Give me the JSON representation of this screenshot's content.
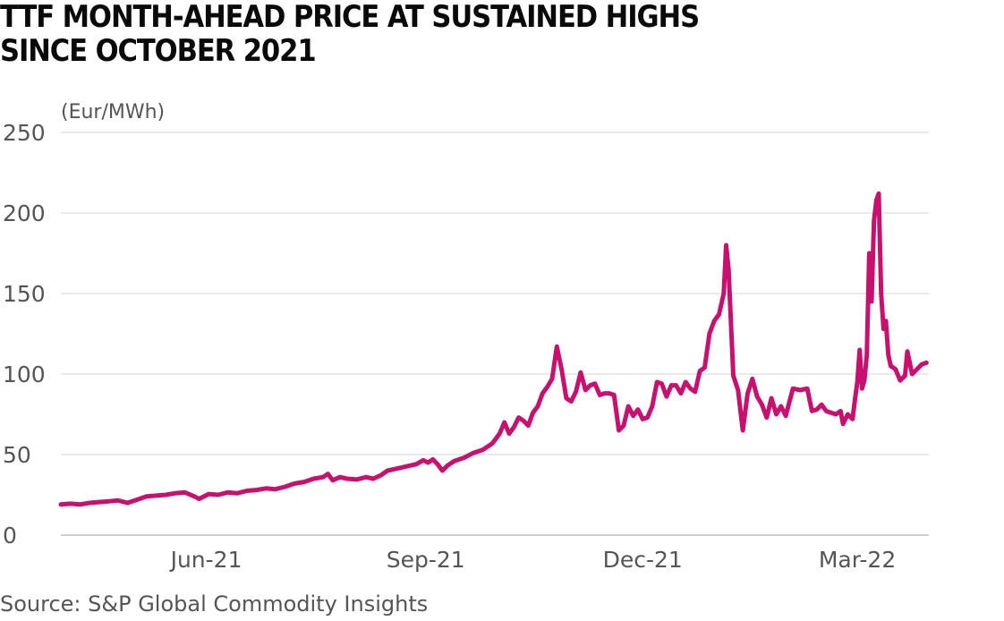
{
  "chart_data": {
    "type": "line",
    "title_lines": [
      "TTF MONTH-AHEAD PRICE AT SUSTAINED HIGHS",
      "SINCE OCTOBER 2021"
    ],
    "unit_label": "(Eur/MWh)",
    "xlabel": "",
    "ylabel": "",
    "ylim": [
      0,
      250
    ],
    "yticks": [
      0,
      50,
      100,
      150,
      200,
      250
    ],
    "xlim": [
      "2021-04-01",
      "2022-03-31"
    ],
    "xticks": [
      {
        "date": "2021-06-01",
        "label": "Jun-21"
      },
      {
        "date": "2021-09-01",
        "label": "Sep-21"
      },
      {
        "date": "2021-12-01",
        "label": "Dec-21"
      },
      {
        "date": "2022-03-01",
        "label": "Mar-22"
      }
    ],
    "grid": true,
    "line_color": "#c8106e",
    "series": [
      {
        "points": [
          [
            "2021-04-01",
            19
          ],
          [
            "2021-04-05",
            19.5
          ],
          [
            "2021-04-09",
            19
          ],
          [
            "2021-04-13",
            20
          ],
          [
            "2021-04-17",
            20.5
          ],
          [
            "2021-04-21",
            21
          ],
          [
            "2021-04-25",
            21.5
          ],
          [
            "2021-04-29",
            20
          ],
          [
            "2021-05-03",
            22
          ],
          [
            "2021-05-07",
            24
          ],
          [
            "2021-05-11",
            24.5
          ],
          [
            "2021-05-15",
            25
          ],
          [
            "2021-05-19",
            26
          ],
          [
            "2021-05-23",
            26.5
          ],
          [
            "2021-05-27",
            24
          ],
          [
            "2021-05-29",
            22.5
          ],
          [
            "2021-06-02",
            25.5
          ],
          [
            "2021-06-06",
            25
          ],
          [
            "2021-06-10",
            26.5
          ],
          [
            "2021-06-14",
            26
          ],
          [
            "2021-06-18",
            27.5
          ],
          [
            "2021-06-22",
            28
          ],
          [
            "2021-06-26",
            29
          ],
          [
            "2021-06-30",
            28.5
          ],
          [
            "2021-07-04",
            30
          ],
          [
            "2021-07-08",
            32
          ],
          [
            "2021-07-12",
            33
          ],
          [
            "2021-07-16",
            35
          ],
          [
            "2021-07-20",
            36
          ],
          [
            "2021-07-22",
            38
          ],
          [
            "2021-07-24",
            34
          ],
          [
            "2021-07-27",
            36
          ],
          [
            "2021-07-30",
            35
          ],
          [
            "2021-08-03",
            34.5
          ],
          [
            "2021-08-07",
            36
          ],
          [
            "2021-08-10",
            35
          ],
          [
            "2021-08-13",
            37
          ],
          [
            "2021-08-16",
            40
          ],
          [
            "2021-08-19",
            41
          ],
          [
            "2021-08-22",
            42
          ],
          [
            "2021-08-25",
            43
          ],
          [
            "2021-08-28",
            44
          ],
          [
            "2021-08-31",
            46.5
          ],
          [
            "2021-09-02",
            45
          ],
          [
            "2021-09-04",
            47
          ],
          [
            "2021-09-06",
            44
          ],
          [
            "2021-09-08",
            40
          ],
          [
            "2021-09-10",
            43
          ],
          [
            "2021-09-13",
            46
          ],
          [
            "2021-09-17",
            48
          ],
          [
            "2021-09-21",
            51
          ],
          [
            "2021-09-25",
            53
          ],
          [
            "2021-09-29",
            57
          ],
          [
            "2021-10-02",
            63
          ],
          [
            "2021-10-04",
            70
          ],
          [
            "2021-10-06",
            63
          ],
          [
            "2021-10-08",
            67
          ],
          [
            "2021-10-10",
            73
          ],
          [
            "2021-10-12",
            71
          ],
          [
            "2021-10-14",
            68
          ],
          [
            "2021-10-16",
            76
          ],
          [
            "2021-10-18",
            80
          ],
          [
            "2021-10-20",
            88
          ],
          [
            "2021-10-22",
            92
          ],
          [
            "2021-10-24",
            97
          ],
          [
            "2021-10-26",
            117
          ],
          [
            "2021-10-28",
            103
          ],
          [
            "2021-10-30",
            85
          ],
          [
            "2021-11-01",
            83
          ],
          [
            "2021-11-03",
            89
          ],
          [
            "2021-11-05",
            101
          ],
          [
            "2021-11-07",
            90
          ],
          [
            "2021-11-09",
            93
          ],
          [
            "2021-11-11",
            94
          ],
          [
            "2021-11-13",
            87
          ],
          [
            "2021-11-15",
            88
          ],
          [
            "2021-11-17",
            88
          ],
          [
            "2021-11-19",
            87
          ],
          [
            "2021-11-21",
            65
          ],
          [
            "2021-11-23",
            68
          ],
          [
            "2021-11-25",
            80
          ],
          [
            "2021-11-27",
            74
          ],
          [
            "2021-11-29",
            78
          ],
          [
            "2021-12-01",
            72
          ],
          [
            "2021-12-03",
            73
          ],
          [
            "2021-12-05",
            80
          ],
          [
            "2021-12-07",
            95
          ],
          [
            "2021-12-09",
            94
          ],
          [
            "2021-12-11",
            86
          ],
          [
            "2021-12-13",
            93
          ],
          [
            "2021-12-15",
            93
          ],
          [
            "2021-12-17",
            88
          ],
          [
            "2021-12-19",
            95
          ],
          [
            "2021-12-21",
            91
          ],
          [
            "2021-12-23",
            89
          ],
          [
            "2021-12-25",
            102
          ],
          [
            "2021-12-27",
            104
          ],
          [
            "2021-12-29",
            125
          ],
          [
            "2021-12-31",
            133
          ],
          [
            "2022-01-02",
            137
          ],
          [
            "2022-01-04",
            150
          ],
          [
            "2022-01-05",
            180
          ],
          [
            "2022-01-06",
            165
          ],
          [
            "2022-01-08",
            99
          ],
          [
            "2022-01-10",
            90
          ],
          [
            "2022-01-12",
            65
          ],
          [
            "2022-01-14",
            88
          ],
          [
            "2022-01-16",
            97
          ],
          [
            "2022-01-18",
            86
          ],
          [
            "2022-01-20",
            81
          ],
          [
            "2022-01-22",
            73
          ],
          [
            "2022-01-24",
            85
          ],
          [
            "2022-01-26",
            75
          ],
          [
            "2022-01-28",
            80
          ],
          [
            "2022-01-30",
            74
          ],
          [
            "2022-02-02",
            91
          ],
          [
            "2022-02-05",
            90
          ],
          [
            "2022-02-08",
            91
          ],
          [
            "2022-02-10",
            77
          ],
          [
            "2022-02-12",
            78
          ],
          [
            "2022-02-14",
            81
          ],
          [
            "2022-02-16",
            77
          ],
          [
            "2022-02-18",
            76
          ],
          [
            "2022-02-20",
            75
          ],
          [
            "2022-02-22",
            77
          ],
          [
            "2022-02-23",
            69
          ],
          [
            "2022-02-24",
            72
          ],
          [
            "2022-02-25",
            75
          ],
          [
            "2022-02-27",
            72
          ],
          [
            "2022-02-28",
            84
          ],
          [
            "2022-03-01",
            95
          ],
          [
            "2022-03-02",
            115
          ],
          [
            "2022-03-03",
            91
          ],
          [
            "2022-03-04",
            96
          ],
          [
            "2022-03-05",
            112
          ],
          [
            "2022-03-06",
            175
          ],
          [
            "2022-03-07",
            145
          ],
          [
            "2022-03-08",
            195
          ],
          [
            "2022-03-09",
            208
          ],
          [
            "2022-03-10",
            212
          ],
          [
            "2022-03-11",
            150
          ],
          [
            "2022-03-12",
            128
          ],
          [
            "2022-03-13",
            133
          ],
          [
            "2022-03-14",
            112
          ],
          [
            "2022-03-15",
            105
          ],
          [
            "2022-03-17",
            103
          ],
          [
            "2022-03-19",
            96
          ],
          [
            "2022-03-21",
            99
          ],
          [
            "2022-03-22",
            114
          ],
          [
            "2022-03-24",
            100
          ],
          [
            "2022-03-26",
            103
          ],
          [
            "2022-03-28",
            106
          ],
          [
            "2022-03-30",
            107
          ]
        ]
      }
    ]
  },
  "source": "Source: S&P Global Commodity Insights"
}
